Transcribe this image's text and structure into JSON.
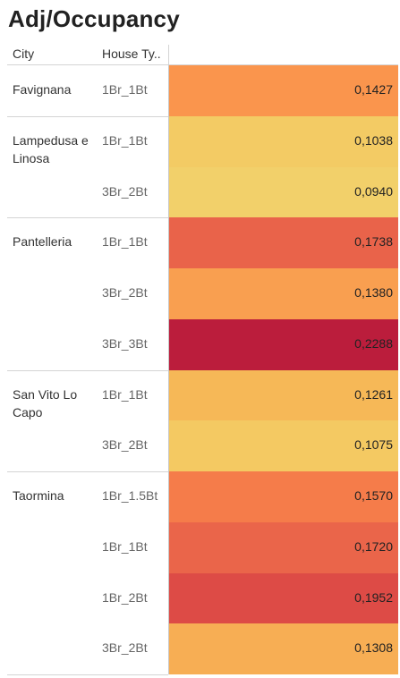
{
  "title": "Adj/Occupancy",
  "headers": {
    "city": "City",
    "house_type": "House Ty.."
  },
  "chart_data": {
    "type": "heatmap",
    "title": "Adj/Occupancy",
    "measure": "Adj/Occupancy",
    "dimensions": [
      "City",
      "House Ty.."
    ],
    "color_scale": [
      "#f2d06a",
      "#f5c35a",
      "#fb8a4a",
      "#e8614a",
      "#d94445",
      "#bb1d3c"
    ],
    "groups": [
      {
        "city": "Favignana",
        "rows": [
          {
            "house_type": "1Br_1Bt",
            "value": 0.1427,
            "label": "0,1427"
          }
        ]
      },
      {
        "city": "Lampedusa e Linosa",
        "rows": [
          {
            "house_type": "1Br_1Bt",
            "value": 0.1038,
            "label": "0,1038"
          },
          {
            "house_type": "3Br_2Bt",
            "value": 0.094,
            "label": "0,0940"
          }
        ]
      },
      {
        "city": "Pantelleria",
        "rows": [
          {
            "house_type": "1Br_1Bt",
            "value": 0.1738,
            "label": "0,1738"
          },
          {
            "house_type": "3Br_2Bt",
            "value": 0.138,
            "label": "0,1380"
          },
          {
            "house_type": "3Br_3Bt",
            "value": 0.2288,
            "label": "0,2288"
          }
        ]
      },
      {
        "city": "San Vito Lo Capo",
        "rows": [
          {
            "house_type": "1Br_1Bt",
            "value": 0.1261,
            "label": "0,1261"
          },
          {
            "house_type": "3Br_2Bt",
            "value": 0.1075,
            "label": "0,1075"
          }
        ]
      },
      {
        "city": "Taormina",
        "rows": [
          {
            "house_type": "1Br_1.5Bt",
            "value": 0.157,
            "label": "0,1570"
          },
          {
            "house_type": "1Br_1Bt",
            "value": 0.172,
            "label": "0,1720"
          },
          {
            "house_type": "1Br_2Bt",
            "value": 0.1952,
            "label": "0,1952"
          },
          {
            "house_type": "3Br_2Bt",
            "value": 0.1308,
            "label": "0,1308"
          }
        ]
      }
    ]
  }
}
